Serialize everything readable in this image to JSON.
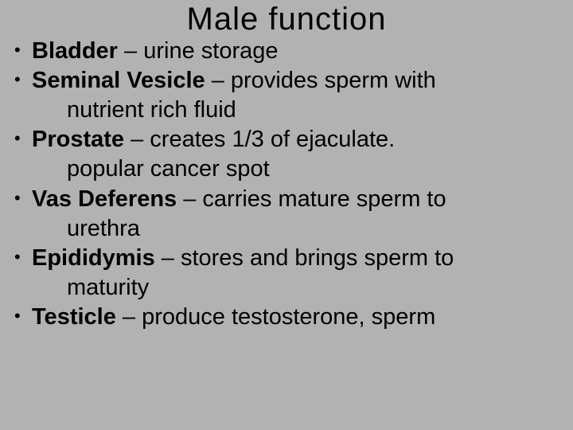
{
  "title": "Male function",
  "items": [
    {
      "term": "Bladder",
      "desc": " – urine storage",
      "cont": ""
    },
    {
      "term": "Seminal Vesicle",
      "desc": " – provides sperm with",
      "cont": "nutrient rich fluid"
    },
    {
      "term": "Prostate",
      "desc": " – creates 1/3 of ejaculate.",
      "cont": "popular cancer spot"
    },
    {
      "term": "Vas Deferens",
      "desc": " – carries mature sperm to",
      "cont": "urethra"
    },
    {
      "term": "Epididymis",
      "desc": " – stores and brings sperm to",
      "cont": "maturity"
    },
    {
      "term": "Testicle",
      "desc": " – produce testosterone, sperm",
      "cont": ""
    }
  ]
}
